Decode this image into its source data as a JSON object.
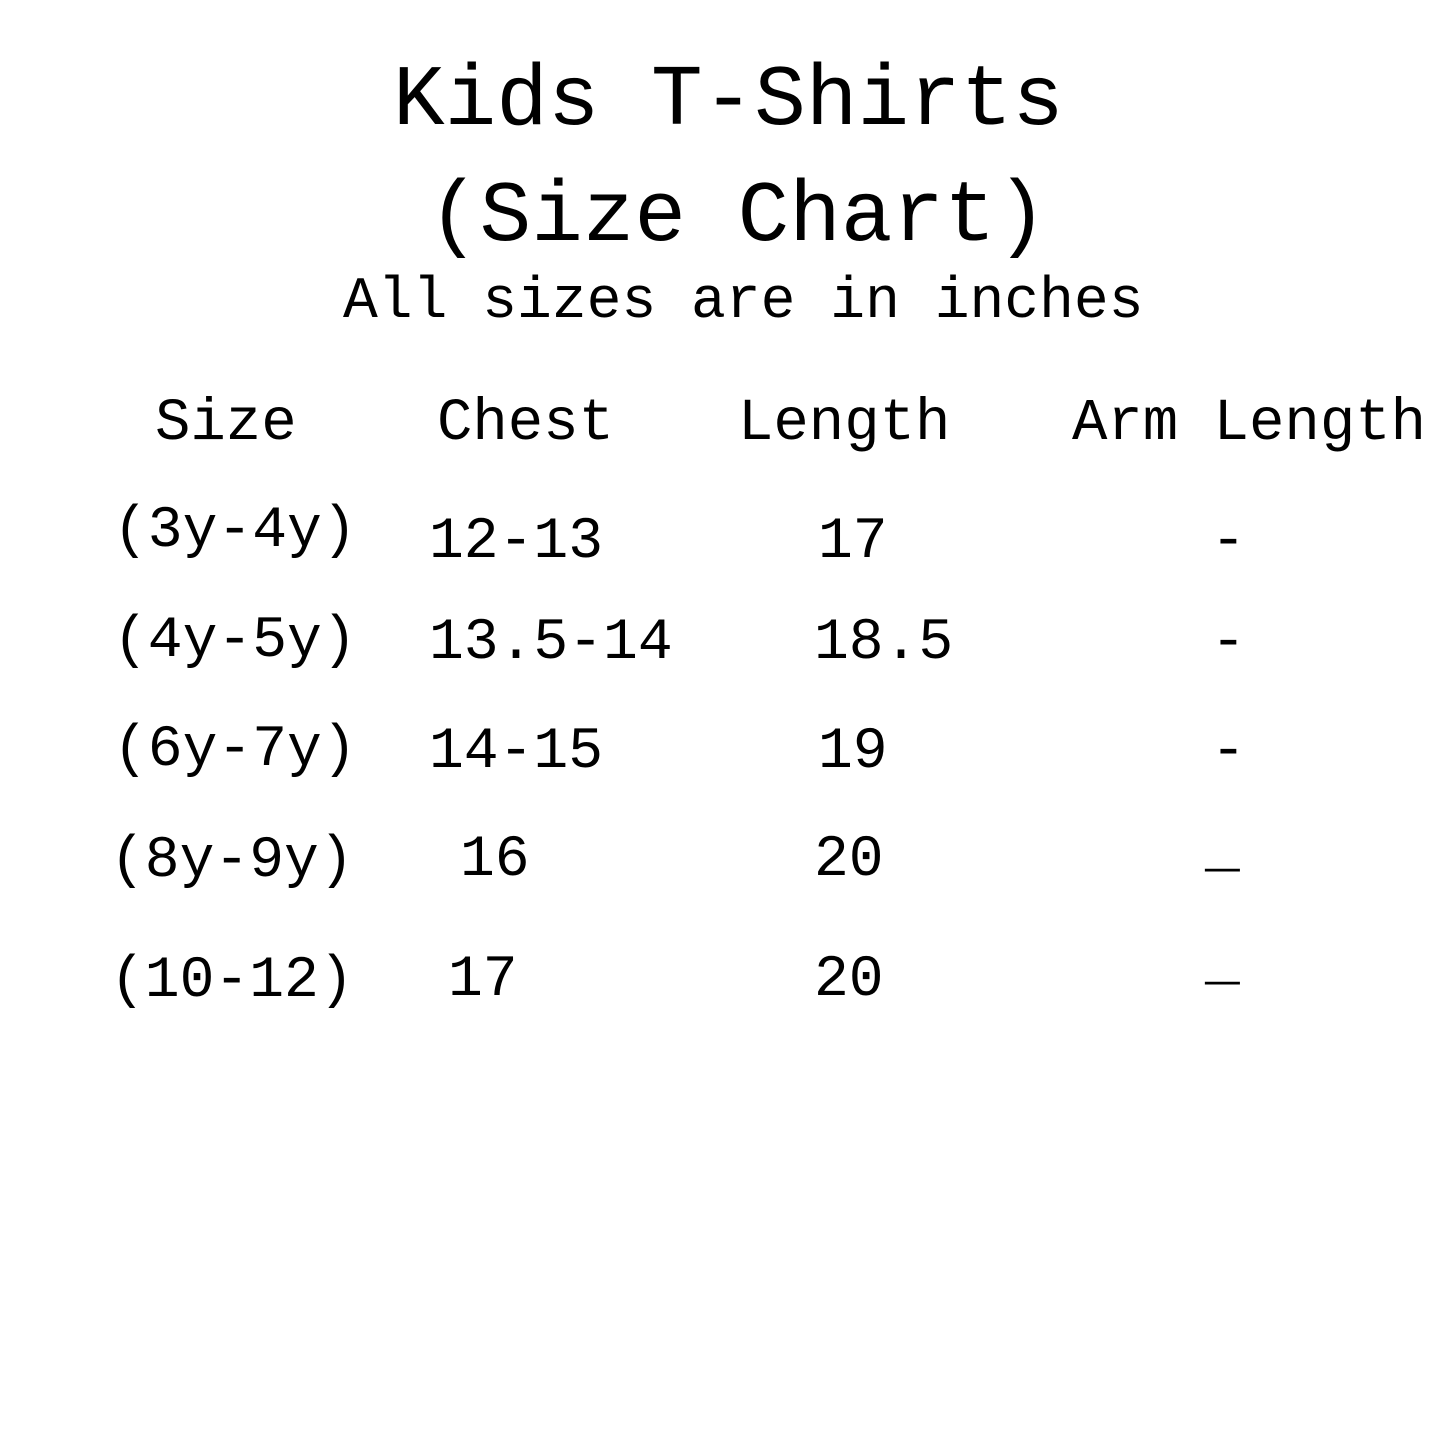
{
  "page": {
    "background_color": "#ffffff",
    "text_color": "#000000"
  },
  "chart_data": {
    "type": "table",
    "title": "Kids T-Shirts",
    "subtitle": "(Size Chart)",
    "note": "All sizes are in inches",
    "units": "inches",
    "columns": [
      "Size",
      "Chest",
      "Length",
      "Arm Length"
    ],
    "rows": [
      [
        "(3y-4y)",
        "12-13",
        "17",
        "-"
      ],
      [
        "(4y-5y)",
        "13.5-14",
        "18.5",
        "-"
      ],
      [
        "(6y-7y)",
        "14-15",
        "19",
        "-"
      ],
      [
        "(8y-9y)",
        "16",
        "20",
        "_"
      ],
      [
        "(10-12)",
        "17",
        "20",
        "_"
      ]
    ],
    "layout": {
      "grid_lines": false,
      "alignment": "loose hand-placed columns, typewriter monospace style"
    }
  }
}
